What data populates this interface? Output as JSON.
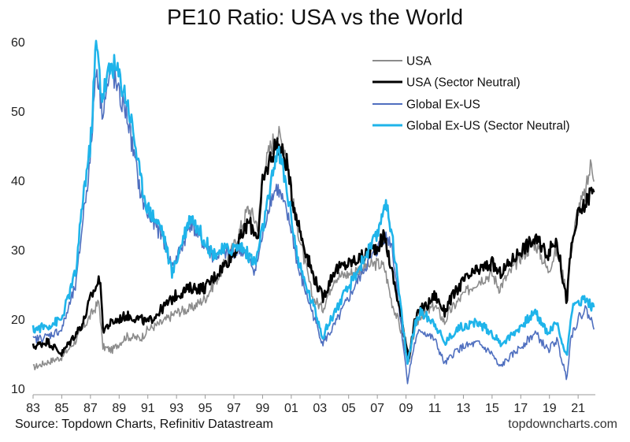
{
  "title": "PE10 Ratio: USA vs the World",
  "source": "Source: Topdown Charts, Refinitiv Datastream",
  "watermark": "topdowncharts.com",
  "colors": {
    "usa": "#8c8c8c",
    "usa_sector_neutral": "#000000",
    "global_ex_us": "#4f6fbf",
    "global_ex_us_sector_neutral": "#1fb4ea",
    "axis": "#9a9a9a"
  },
  "chart_data": {
    "type": "line",
    "title": "PE10 Ratio: USA vs the World",
    "xlabel": "",
    "ylabel": "",
    "xlim": [
      1983.0,
      2022.2
    ],
    "ylim": [
      10,
      60
    ],
    "y_ticks": [
      10,
      20,
      30,
      40,
      50,
      60
    ],
    "x_tick_values": [
      1983,
      1985,
      1987,
      1989,
      1991,
      1993,
      1995,
      1997,
      1999,
      2001,
      2003,
      2005,
      2007,
      2009,
      2011,
      2013,
      2015,
      2017,
      2019,
      2021
    ],
    "x_tick_labels": [
      "83",
      "85",
      "87",
      "89",
      "91",
      "93",
      "95",
      "97",
      "99",
      "01",
      "03",
      "05",
      "07",
      "09",
      "11",
      "13",
      "15",
      "17",
      "19",
      "21"
    ],
    "grid": false,
    "legend_position": "top-right",
    "series": [
      {
        "name": "USA",
        "x": [
          1983.0,
          1984.0,
          1985.0,
          1986.0,
          1987.0,
          1987.6,
          1987.85,
          1988.5,
          1989.5,
          1990.5,
          1991.0,
          1992.0,
          1993.0,
          1994.0,
          1995.0,
          1996.0,
          1997.0,
          1998.0,
          1998.7,
          1999.0,
          1999.5,
          2000.0,
          2000.7,
          2001.0,
          2001.7,
          2002.5,
          2003.2,
          2004.0,
          2005.0,
          2006.0,
          2007.0,
          2007.5,
          2008.0,
          2008.5,
          2009.2,
          2009.6,
          2010.0,
          2010.5,
          2011.0,
          2011.7,
          2012.0,
          2013.0,
          2014.0,
          2015.0,
          2015.5,
          2016.0,
          2017.0,
          2018.0,
          2018.9,
          2019.5,
          2020.2,
          2020.5,
          2021.0,
          2021.5,
          2021.9,
          2022.1
        ],
        "values": [
          13.0,
          13.8,
          14.5,
          17.0,
          20.5,
          22.5,
          16.0,
          15.5,
          17.5,
          17.2,
          18.5,
          19.5,
          21.0,
          21.5,
          23.0,
          26.5,
          30.5,
          36.0,
          33.5,
          40.5,
          44.5,
          47.0,
          44.0,
          38.0,
          30.5,
          23.0,
          21.5,
          26.0,
          26.5,
          27.5,
          28.0,
          27.5,
          22.5,
          19.5,
          13.3,
          18.5,
          20.5,
          21.0,
          22.0,
          19.5,
          21.0,
          23.5,
          25.5,
          26.5,
          24.5,
          26.0,
          29.0,
          31.0,
          27.0,
          30.0,
          24.0,
          30.0,
          36.0,
          38.0,
          42.5,
          41.0
        ]
      },
      {
        "name": "USA (Sector Neutral)",
        "x": [
          1983.0,
          1984.0,
          1985.0,
          1986.0,
          1986.5,
          1987.0,
          1987.7,
          1987.85,
          1988.5,
          1989.5,
          1990.5,
          1991.0,
          1992.0,
          1993.0,
          1994.0,
          1995.0,
          1996.0,
          1997.0,
          1998.0,
          1998.7,
          1999.0,
          1999.5,
          2000.0,
          2000.7,
          2001.0,
          2001.7,
          2002.5,
          2003.2,
          2004.0,
          2005.0,
          2006.0,
          2007.0,
          2007.5,
          2008.0,
          2008.5,
          2009.2,
          2009.6,
          2010.0,
          2010.5,
          2011.0,
          2011.7,
          2012.0,
          2013.0,
          2014.0,
          2015.0,
          2015.5,
          2016.0,
          2017.0,
          2018.0,
          2018.9,
          2019.5,
          2020.2,
          2020.5,
          2021.0,
          2021.5,
          2021.9,
          2022.1
        ],
        "values": [
          16.0,
          16.8,
          15.0,
          18.0,
          19.5,
          23.0,
          26.0,
          18.5,
          19.5,
          20.5,
          20.0,
          19.5,
          21.5,
          23.5,
          24.5,
          24.5,
          27.0,
          29.5,
          34.0,
          32.0,
          39.5,
          43.0,
          45.5,
          42.5,
          38.0,
          32.0,
          26.5,
          23.0,
          27.0,
          28.0,
          29.0,
          30.5,
          32.0,
          27.0,
          22.0,
          14.5,
          19.5,
          21.5,
          22.0,
          23.5,
          21.0,
          22.5,
          25.5,
          27.0,
          28.0,
          26.5,
          27.5,
          30.0,
          31.5,
          29.5,
          31.5,
          22.5,
          30.0,
          35.0,
          36.5,
          38.5,
          38.0
        ]
      },
      {
        "name": "Global Ex-US",
        "x": [
          1983.0,
          1984.0,
          1985.0,
          1986.0,
          1986.5,
          1987.0,
          1987.4,
          1987.8,
          1988.5,
          1989.0,
          1989.5,
          1990.0,
          1990.5,
          1991.0,
          1992.0,
          1992.7,
          1993.5,
          1994.0,
          1994.5,
          1995.5,
          1996.5,
          1997.5,
          1998.5,
          1999.0,
          1999.5,
          2000.0,
          2000.4,
          2001.0,
          2001.5,
          2002.0,
          2002.7,
          2003.2,
          2004.0,
          2005.0,
          2006.0,
          2007.0,
          2007.5,
          2008.0,
          2008.5,
          2009.1,
          2009.6,
          2010.0,
          2011.0,
          2011.7,
          2012.5,
          2013.0,
          2014.0,
          2015.0,
          2015.5,
          2016.0,
          2017.0,
          2018.0,
          2018.9,
          2019.5,
          2020.2,
          2020.5,
          2021.0,
          2021.5,
          2022.1
        ],
        "values": [
          17.0,
          17.5,
          18.5,
          25.0,
          35.0,
          43.0,
          57.0,
          50.0,
          56.0,
          52.0,
          50.0,
          44.0,
          38.0,
          35.0,
          32.0,
          27.5,
          31.0,
          34.0,
          32.0,
          29.0,
          29.5,
          30.0,
          27.0,
          32.0,
          37.0,
          39.0,
          37.0,
          33.0,
          27.0,
          24.0,
          19.5,
          16.5,
          19.0,
          23.0,
          27.0,
          30.0,
          32.0,
          31.0,
          22.0,
          11.0,
          16.5,
          18.5,
          17.0,
          13.5,
          15.5,
          16.0,
          16.5,
          15.0,
          13.0,
          14.0,
          16.0,
          18.0,
          15.5,
          17.0,
          11.5,
          17.5,
          20.0,
          21.5,
          19.0
        ]
      },
      {
        "name": "Global Ex-US (Sector Neutral)",
        "x": [
          1983.0,
          1984.0,
          1985.0,
          1986.0,
          1986.5,
          1987.0,
          1987.4,
          1987.8,
          1988.5,
          1989.0,
          1989.5,
          1990.0,
          1990.5,
          1991.0,
          1992.0,
          1992.7,
          1993.5,
          1994.0,
          1994.5,
          1995.5,
          1996.5,
          1997.5,
          1998.5,
          1999.0,
          1999.5,
          2000.0,
          2000.4,
          2001.0,
          2001.5,
          2002.0,
          2002.7,
          2003.2,
          2004.0,
          2005.0,
          2006.0,
          2007.0,
          2007.5,
          2008.0,
          2008.5,
          2009.1,
          2009.6,
          2010.0,
          2011.0,
          2011.7,
          2012.5,
          2013.0,
          2014.0,
          2015.0,
          2015.5,
          2016.0,
          2017.0,
          2018.0,
          2018.9,
          2019.5,
          2020.2,
          2020.5,
          2021.0,
          2021.5,
          2022.1
        ],
        "values": [
          18.5,
          19.0,
          20.0,
          27.0,
          38.0,
          45.0,
          60.0,
          52.0,
          57.0,
          55.0,
          52.0,
          47.0,
          40.0,
          36.0,
          33.0,
          26.5,
          32.0,
          35.0,
          33.0,
          29.5,
          30.0,
          30.5,
          28.0,
          33.0,
          38.0,
          44.5,
          42.0,
          35.0,
          28.0,
          25.0,
          21.0,
          17.5,
          21.0,
          24.5,
          28.5,
          32.0,
          37.0,
          33.0,
          24.0,
          13.5,
          19.0,
          21.0,
          19.5,
          16.5,
          18.5,
          19.0,
          19.5,
          18.0,
          16.5,
          17.0,
          19.0,
          21.0,
          18.0,
          19.5,
          14.5,
          21.0,
          22.5,
          23.0,
          21.5
        ]
      }
    ]
  }
}
